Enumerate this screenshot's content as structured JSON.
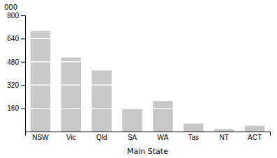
{
  "chart_data": {
    "type": "bar",
    "categories": [
      "NSW",
      "Vic",
      "Qld",
      "SA",
      "WA",
      "Tas",
      "NT",
      "ACT"
    ],
    "values": [
      690,
      510,
      420,
      155,
      210,
      55,
      18,
      40
    ],
    "color": "#c8c8c8",
    "xlabel": "Main State",
    "ylabel": "000",
    "ylim": [
      0,
      800
    ],
    "yticks": [
      160,
      320,
      480,
      640,
      800
    ],
    "grid": true
  }
}
